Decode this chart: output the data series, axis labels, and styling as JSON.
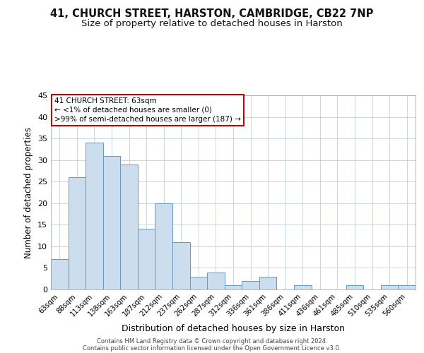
{
  "title_line1": "41, CHURCH STREET, HARSTON, CAMBRIDGE, CB22 7NP",
  "title_line2": "Size of property relative to detached houses in Harston",
  "xlabel": "Distribution of detached houses by size in Harston",
  "ylabel": "Number of detached properties",
  "bar_labels": [
    "63sqm",
    "88sqm",
    "113sqm",
    "138sqm",
    "163sqm",
    "187sqm",
    "212sqm",
    "237sqm",
    "262sqm",
    "287sqm",
    "312sqm",
    "336sqm",
    "361sqm",
    "386sqm",
    "411sqm",
    "436sqm",
    "461sqm",
    "485sqm",
    "510sqm",
    "535sqm",
    "560sqm"
  ],
  "bar_values": [
    7,
    26,
    34,
    31,
    29,
    14,
    20,
    11,
    3,
    4,
    1,
    2,
    3,
    0,
    1,
    0,
    0,
    1,
    0,
    1,
    1
  ],
  "bar_color": "#ccdded",
  "bar_edge_color": "#6699bb",
  "ylim": [
    0,
    45
  ],
  "yticks": [
    0,
    5,
    10,
    15,
    20,
    25,
    30,
    35,
    40,
    45
  ],
  "annotation_box_text_line1": "41 CHURCH STREET: 63sqm",
  "annotation_box_text_line2": "← <1% of detached houses are smaller (0)",
  "annotation_box_text_line3": ">99% of semi-detached houses are larger (187) →",
  "annotation_box_edge_color": "#cc0000",
  "footer_line1": "Contains HM Land Registry data © Crown copyright and database right 2024.",
  "footer_line2": "Contains public sector information licensed under the Open Government Licence v3.0.",
  "background_color": "#ffffff",
  "grid_color": "#c0d0e0",
  "title_fontsize": 10.5,
  "subtitle_fontsize": 9.5
}
